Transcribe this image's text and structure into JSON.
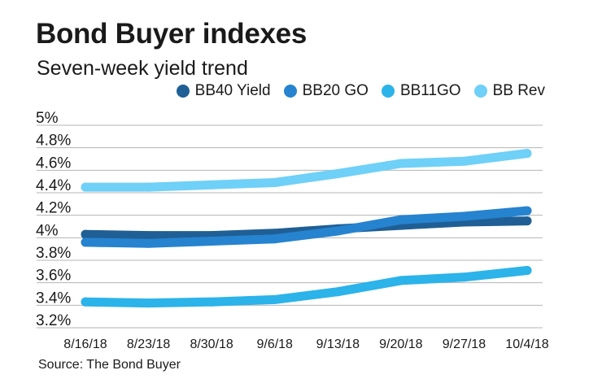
{
  "header": {
    "title": "Bond Buyer indexes",
    "subtitle": "Seven-week yield trend"
  },
  "source": "Source: The Bond Buyer",
  "chart_data": {
    "type": "line",
    "title": "Bond Buyer indexes",
    "subtitle": "Seven-week yield trend",
    "xlabel": "",
    "ylabel": "",
    "categories": [
      "8/16/18",
      "8/23/18",
      "8/30/18",
      "9/6/18",
      "9/13/18",
      "9/20/18",
      "9/27/18",
      "10/4/18"
    ],
    "y_ticks": [
      "5%",
      "4.8%",
      "4.6%",
      "4.4%",
      "4.2%",
      "4%",
      "3.8%",
      "3.6%",
      "3.4%",
      "3.2%"
    ],
    "ylim": [
      3.2,
      5.0
    ],
    "y_unit": "%",
    "grid": "horizontal",
    "legend_position": "top-right",
    "series": [
      {
        "name": "BB40 Yield",
        "color": "#1f5f95",
        "values": [
          4.03,
          4.02,
          4.02,
          4.04,
          4.08,
          4.11,
          4.14,
          4.15
        ]
      },
      {
        "name": "BB20 GO",
        "color": "#2683cf",
        "values": [
          3.96,
          3.95,
          3.97,
          3.99,
          4.06,
          4.16,
          4.19,
          4.24
        ]
      },
      {
        "name": "BB11GO",
        "color": "#2bb3ea",
        "values": [
          3.43,
          3.42,
          3.43,
          3.45,
          3.52,
          3.62,
          3.65,
          3.71
        ]
      },
      {
        "name": "BB Rev",
        "color": "#6fd0f8",
        "values": [
          4.45,
          4.45,
          4.47,
          4.49,
          4.57,
          4.66,
          4.68,
          4.75
        ]
      }
    ]
  }
}
